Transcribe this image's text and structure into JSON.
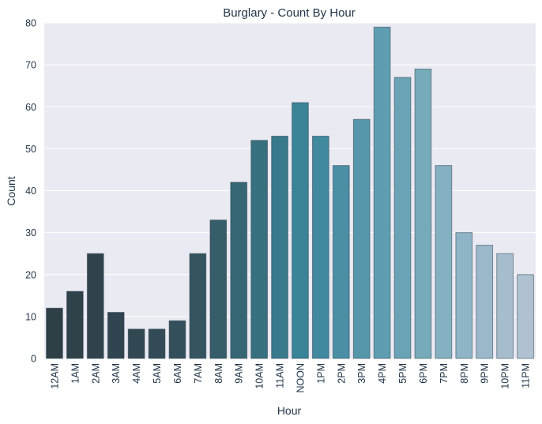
{
  "chart_data": {
    "type": "bar",
    "title": "Burglary - Count By Hour",
    "xlabel": "Hour",
    "ylabel": "Count",
    "categories": [
      "12AM",
      "1AM",
      "2AM",
      "3AM",
      "4AM",
      "5AM",
      "6AM",
      "7AM",
      "8AM",
      "9AM",
      "10AM",
      "11AM",
      "NOON",
      "1PM",
      "2PM",
      "3PM",
      "4PM",
      "5PM",
      "6PM",
      "7PM",
      "8PM",
      "9PM",
      "10PM",
      "11PM"
    ],
    "values": [
      12,
      16,
      25,
      11,
      7,
      7,
      9,
      25,
      33,
      42,
      52,
      53,
      61,
      53,
      46,
      57,
      79,
      67,
      69,
      46,
      30,
      27,
      25,
      20
    ],
    "ylim": [
      0,
      80
    ],
    "yticks": [
      0,
      10,
      20,
      30,
      40,
      50,
      60,
      70,
      80
    ],
    "grid": true,
    "background": "#eaeaf2",
    "colors": [
      "#2f3f46",
      "#2f4149",
      "#30434c",
      "#30454f",
      "#314852",
      "#324b56",
      "#334f5b",
      "#345560",
      "#355d6a",
      "#366674",
      "#37707f",
      "#387a8b",
      "#3a8498",
      "#40899f",
      "#4a8fa4",
      "#5596aa",
      "#5f9db0",
      "#6aa3b5",
      "#77abba",
      "#84b1c1",
      "#8fb4c6",
      "#9ab8ca",
      "#a5bdcd",
      "#b0c2d1"
    ]
  }
}
